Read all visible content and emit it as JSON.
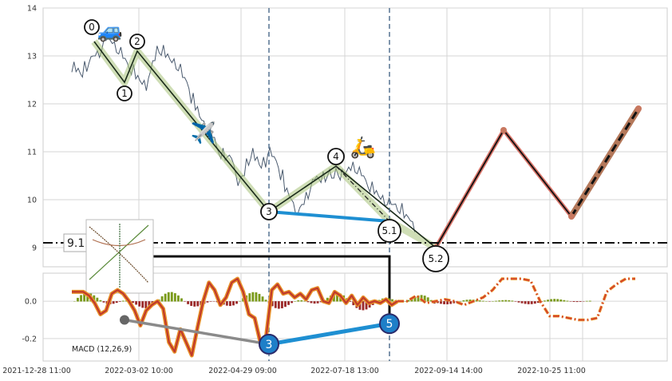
{
  "chart_data": {
    "type": "line",
    "title": "",
    "x_tick_labels": [
      "2021-12-28 11:00",
      "2022-03-02 10:00",
      "2022-04-29 09:00",
      "2022-07-18 13:00",
      "2022-09-14 14:00",
      "2022-10-25 11:00"
    ],
    "price_panel": {
      "ylim": [
        8.6,
        14.0
      ],
      "yticks": [
        "9",
        "10",
        "11",
        "12",
        "13",
        "14"
      ],
      "grid": true,
      "series": [
        {
          "role": "price",
          "color": "#4a5a6e",
          "values": [
            12.75,
            12.7,
            12.6,
            12.8,
            12.9,
            13.0,
            13.05,
            13.2,
            13.35,
            13.3,
            13.2,
            13.1,
            12.95,
            12.8,
            12.7,
            12.55,
            12.45,
            12.4,
            12.6,
            12.9,
            13.15,
            13.1,
            13.0,
            12.9,
            12.85,
            12.75,
            12.55,
            12.4,
            12.1,
            11.9,
            11.7,
            11.55,
            11.4,
            11.3,
            11.05,
            10.95,
            10.85,
            10.9,
            10.65,
            10.35,
            10.5,
            10.8,
            10.95,
            10.85,
            10.7,
            10.8,
            11.0,
            10.9,
            10.75,
            10.5,
            10.2,
            10.05,
            9.85,
            9.75,
            9.9,
            10.1,
            10.3,
            10.45,
            10.4,
            10.5,
            10.55,
            10.45,
            10.6,
            10.5,
            10.55,
            10.65,
            10.7,
            10.6,
            10.5,
            10.35,
            10.25,
            10.15,
            10.05,
            10.0,
            9.95,
            9.9,
            9.85,
            9.8,
            9.65,
            9.6,
            9.45
          ]
        },
        {
          "role": "projection",
          "color": "#d9756a",
          "points": [
            [
              "5.2",
              9.0
            ],
            [
              "p1",
              11.45
            ],
            [
              "p2",
              9.65
            ],
            [
              "p3",
              11.9
            ]
          ]
        }
      ],
      "wave_points": [
        {
          "label": "0",
          "value": 13.3
        },
        {
          "label": "1",
          "value": 12.45
        },
        {
          "label": "2",
          "value": 13.1
        },
        {
          "label": "3",
          "value": 9.75
        },
        {
          "label": "4",
          "value": 10.7
        },
        {
          "label": "5.1",
          "value": 9.55
        },
        {
          "label": "5.2",
          "value": 9.0
        }
      ],
      "horizontal_level": {
        "label": "9.1",
        "value": 9.1,
        "style": "dash-dot"
      },
      "vertical_markers": [
        "3",
        "5.1"
      ],
      "icons": [
        "car-icon",
        "airplane-icon",
        "scooter-icon"
      ]
    },
    "macd_panel": {
      "label": "MACD (12,26,9)",
      "ylim": [
        -0.32,
        0.15
      ],
      "yticks": [
        "-0.2",
        "0.0"
      ],
      "grid": true,
      "macd_values": [
        0.05,
        0.05,
        0.05,
        0.03,
        -0.01,
        -0.07,
        -0.05,
        0.04,
        0.06,
        0.04,
        0.0,
        -0.05,
        -0.13,
        -0.05,
        -0.02,
        0.0,
        -0.04,
        -0.22,
        -0.27,
        -0.15,
        -0.22,
        -0.29,
        -0.14,
        0.0,
        0.1,
        0.06,
        -0.02,
        0.02,
        0.1,
        0.12,
        0.05,
        -0.07,
        -0.09,
        -0.22,
        -0.19,
        0.06,
        0.09,
        0.04,
        0.05,
        0.02,
        0.04,
        0.01,
        0.06,
        0.07,
        0.0,
        -0.01,
        0.05,
        0.03,
        -0.01,
        0.03,
        -0.02,
        0.02,
        -0.01,
        0.0,
        -0.01,
        0.01,
        -0.02,
        0.0
      ],
      "signal_projection": [
        0.0,
        0.0,
        0.03,
        -0.01,
        0.0,
        0.01,
        0.0,
        -0.02,
        0.0,
        0.02,
        0.06,
        0.12,
        0.12,
        0.12,
        0.11,
        0.0,
        -0.08,
        -0.08,
        -0.09,
        -0.1,
        -0.1,
        -0.09,
        0.05,
        0.09,
        0.12,
        0.12
      ],
      "wave_points": [
        {
          "label": "",
          "value": -0.1
        },
        {
          "label": "3",
          "value": -0.23
        },
        {
          "label": "5",
          "value": -0.12
        }
      ],
      "colors": {
        "macd": "#e8922a",
        "macd_dark": "#c0392b",
        "signal": "#d13a2c",
        "hist_pos": "#7a9a1a",
        "hist_neg": "#9b2a2a",
        "link": "#1e8fd2",
        "link_gray": "#8a8a8a"
      }
    }
  }
}
